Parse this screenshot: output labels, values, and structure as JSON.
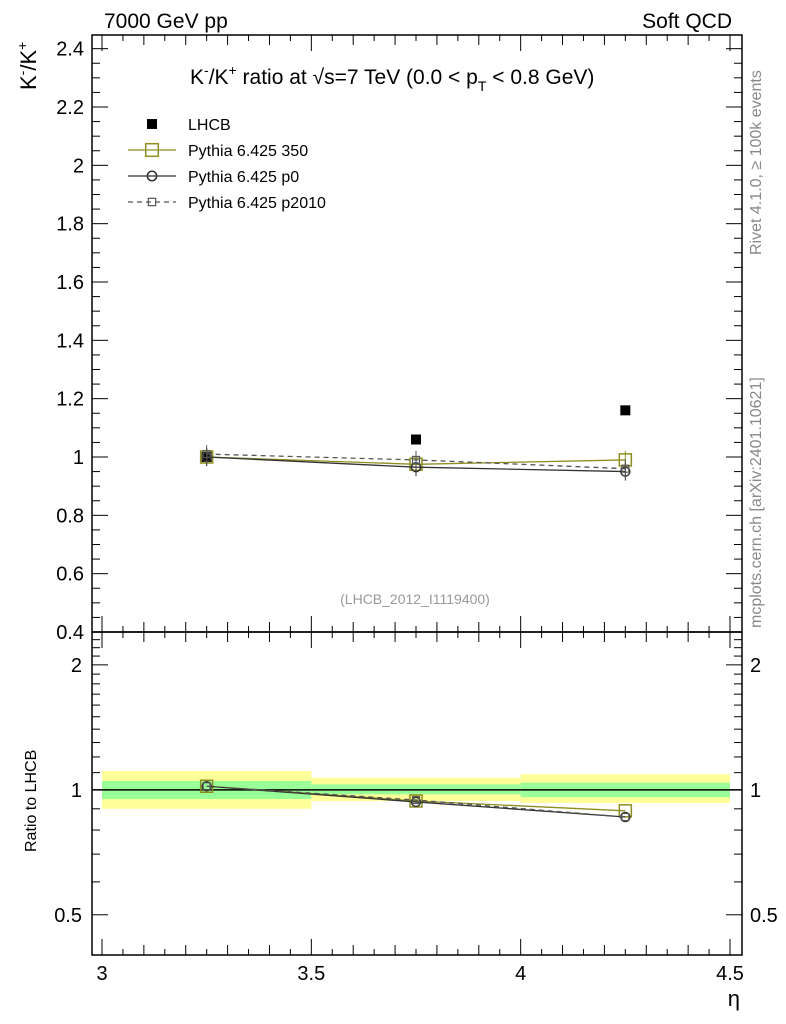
{
  "header": {
    "left": "7000 GeV pp",
    "right": "Soft QCD"
  },
  "side_labels": {
    "rivet": "Rivet 4.1.0, ≥ 100k events",
    "mcplots": "mcplots.cern.ch [arXiv:2401.10621]"
  },
  "chart_data": {
    "type": "scatter",
    "title": {
      "part1": "K",
      "sup1": "-",
      "part2": "/K",
      "sup2": "+",
      "part3": " ratio at √s=7 TeV (0.0 < p",
      "sub": "T",
      "part4": " < 0.8 GeV)"
    },
    "ylabel": {
      "base1": "K",
      "sup1": "-",
      "base2": "/K",
      "sup2": "+"
    },
    "xlabel": "η",
    "watermark": "(LHCB_2012_I1119400)",
    "xlim": [
      3.0,
      4.5
    ],
    "ylim": [
      0.4,
      2.44
    ],
    "xticks": [
      "3",
      "3.5",
      "4",
      "4.5"
    ],
    "yticks": [
      "0.4",
      "0.6",
      "0.8",
      "1",
      "1.2",
      "1.4",
      "1.6",
      "1.8",
      "2",
      "2.2",
      "2.4"
    ],
    "x": [
      3.25,
      3.75,
      4.25
    ],
    "series": [
      {
        "name": "LHCB",
        "style": "data",
        "color": "#000000",
        "values": [
          1.0,
          1.06,
          1.16
        ]
      },
      {
        "name": "Pythia 6.425 350",
        "style": "square-open",
        "color": "#8e8e1e",
        "values": [
          1.0,
          0.975,
          0.99
        ]
      },
      {
        "name": "Pythia 6.425 p0",
        "style": "circle-open",
        "color": "#333333",
        "values": [
          1.0,
          0.965,
          0.95
        ]
      },
      {
        "name": "Pythia 6.425 p2010",
        "style": "small-square-dashed",
        "color": "#555555",
        "values": [
          1.01,
          0.99,
          0.96
        ]
      }
    ],
    "ratio": {
      "ylabel": "Ratio to LHCB",
      "ylim": [
        0.4,
        2.4
      ],
      "yticks": [
        "0.5",
        "1",
        "2"
      ],
      "bins": [
        [
          3.0,
          3.5
        ],
        [
          3.5,
          4.0
        ],
        [
          4.0,
          4.5
        ]
      ],
      "band_inner": [
        [
          0.95,
          1.05
        ],
        [
          0.975,
          1.03
        ],
        [
          0.96,
          1.04
        ]
      ],
      "band_outer": [
        [
          0.9,
          1.11
        ],
        [
          0.94,
          1.07
        ],
        [
          0.93,
          1.09
        ]
      ],
      "series": [
        {
          "name": "Pythia 6.425 350",
          "values": [
            1.02,
            0.94,
            0.89
          ]
        },
        {
          "name": "Pythia 6.425 p0",
          "values": [
            1.02,
            0.935,
            0.86
          ]
        },
        {
          "name": "Pythia 6.425 p2010",
          "values": [
            1.02,
            0.945,
            0.86
          ]
        }
      ]
    }
  }
}
